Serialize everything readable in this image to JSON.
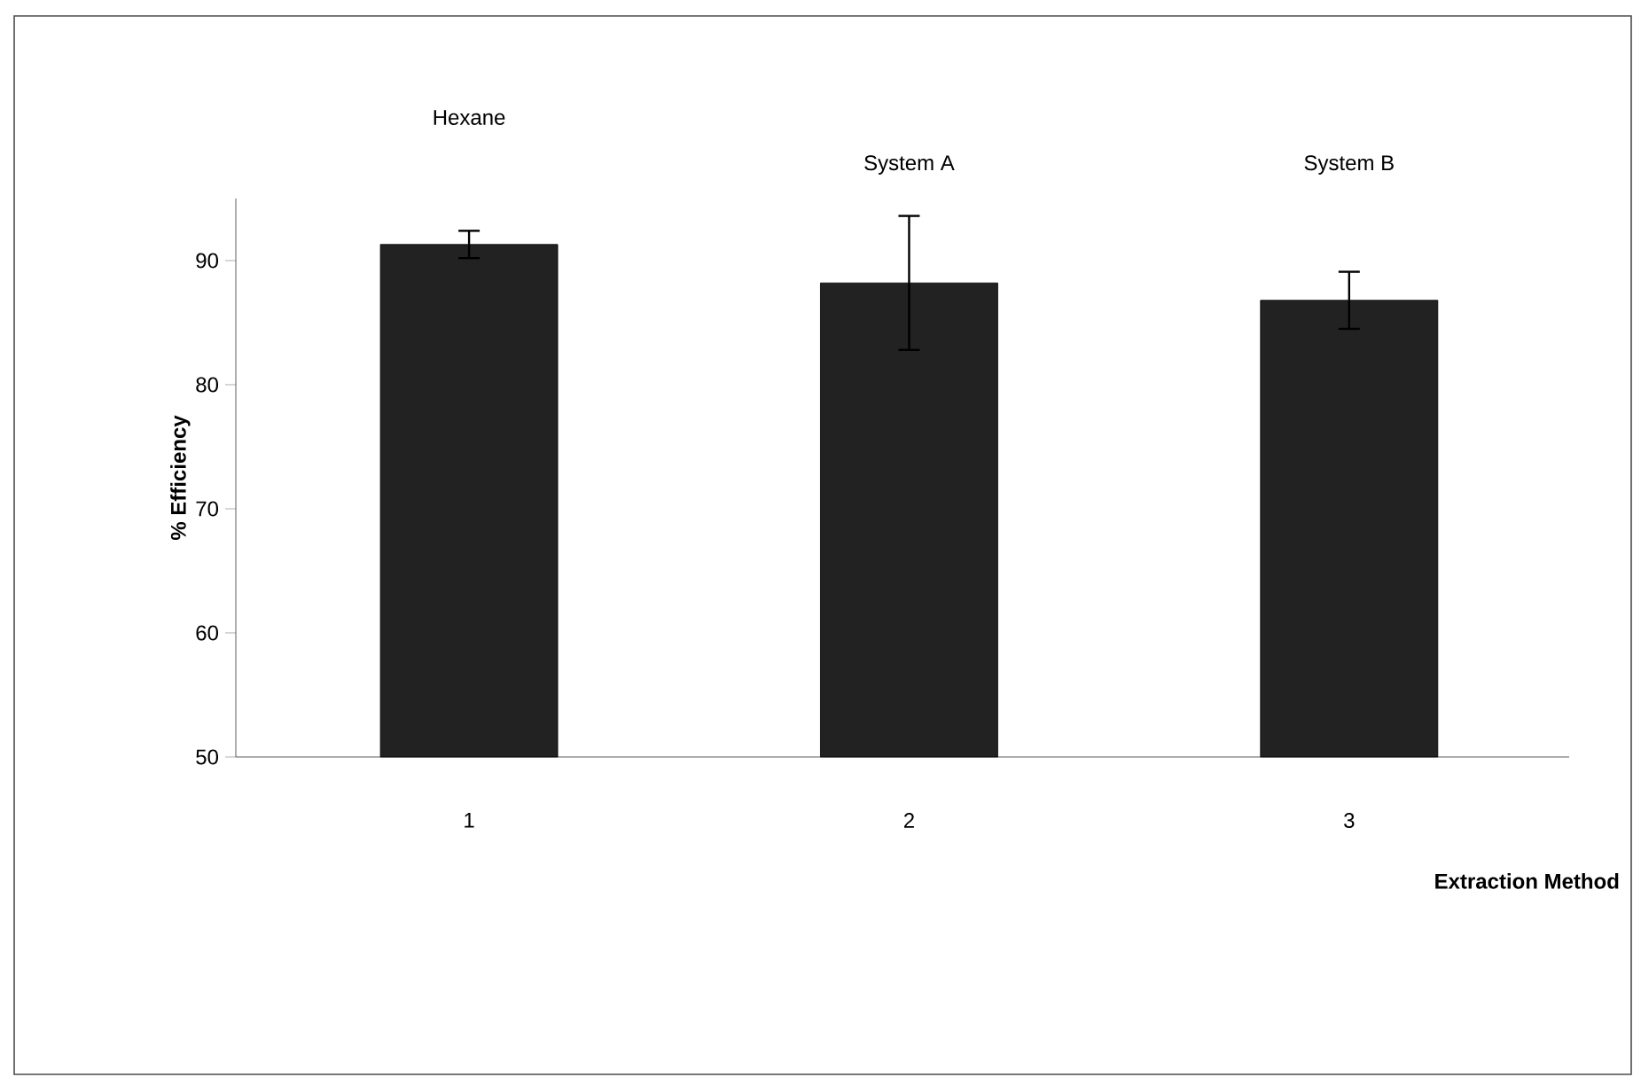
{
  "chart_data": {
    "type": "bar",
    "categories": [
      "1",
      "2",
      "3"
    ],
    "values": [
      91.3,
      88.2,
      86.8
    ],
    "errors": [
      1.1,
      5.4,
      2.3
    ],
    "color": "#222222",
    "xlabel": "Extraction Method",
    "ylabel": "% Efficiency",
    "ylim": [
      50,
      95
    ],
    "yticks": [
      50,
      60,
      70,
      80,
      90
    ],
    "annotations": [
      "Hexane",
      "System A",
      "System B"
    ]
  }
}
